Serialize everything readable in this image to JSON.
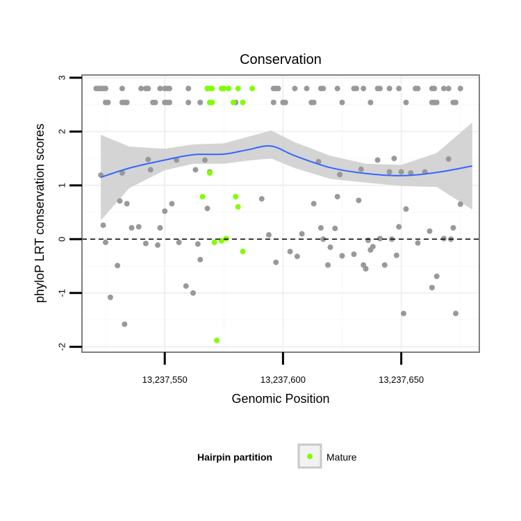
{
  "chart_data": {
    "type": "scatter",
    "title": "Conservation",
    "xlabel": "Genomic Position",
    "ylabel": "phyloP LRT conservation scores",
    "xlim": [
      13237515,
      13237683
    ],
    "ylim": [
      -2.1,
      3.05
    ],
    "x_ticks": [
      {
        "value": 13237550,
        "label": "13,237,550"
      },
      {
        "value": 13237600,
        "label": "13,237,600"
      },
      {
        "value": 13237650,
        "label": "13,237,650"
      }
    ],
    "y_ticks": [
      {
        "value": -2,
        "label": "-2"
      },
      {
        "value": -1,
        "label": "-1"
      },
      {
        "value": 0,
        "label": "0"
      },
      {
        "value": 1,
        "label": "1"
      },
      {
        "value": 2,
        "label": "2"
      },
      {
        "value": 3,
        "label": "3"
      }
    ],
    "reference_line": {
      "y": 0,
      "style": "dashed"
    },
    "colors": {
      "other": "#999999",
      "mature": "#7fff00",
      "smooth_line": "#3366ff",
      "smooth_band": "#cccccc",
      "panel_border": "#7f7f7f"
    },
    "legend": {
      "title": "Hairpin partition",
      "entries": [
        {
          "label": "Mature",
          "color": "#7fff00"
        }
      ],
      "position": "bottom"
    },
    "smooth": {
      "x": [
        13237523,
        13237535,
        13237550,
        13237562,
        13237575,
        13237585,
        13237595,
        13237605,
        13237620,
        13237635,
        13237650,
        13237665,
        13237680
      ],
      "y": [
        1.15,
        1.32,
        1.47,
        1.57,
        1.58,
        1.66,
        1.73,
        1.55,
        1.33,
        1.22,
        1.18,
        1.24,
        1.36
      ],
      "lower": [
        0.35,
        0.95,
        1.28,
        1.4,
        1.4,
        1.46,
        1.5,
        1.32,
        1.12,
        1.05,
        0.99,
        0.97,
        0.55
      ],
      "upper": [
        1.94,
        1.72,
        1.68,
        1.76,
        1.78,
        1.9,
        2.02,
        1.8,
        1.55,
        1.4,
        1.38,
        1.6,
        2.17
      ]
    },
    "series": [
      {
        "name": "Other",
        "points": [
          [
            13237523,
            1.19
          ],
          [
            13237524,
            0.26
          ],
          [
            13237525,
            -0.06
          ],
          [
            13237527,
            -1.08
          ],
          [
            13237530,
            -0.49
          ],
          [
            13237531,
            0.71
          ],
          [
            13237532,
            1.23
          ],
          [
            13237533,
            -1.58
          ],
          [
            13237534,
            0.66
          ],
          [
            13237536,
            0.21
          ],
          [
            13237539,
            0.23
          ],
          [
            13237542,
            -0.08
          ],
          [
            13237543,
            1.48
          ],
          [
            13237544,
            1.29
          ],
          [
            13237547,
            -0.11
          ],
          [
            13237548,
            0.21
          ],
          [
            13237550,
            0.52
          ],
          [
            13237553,
            0.66
          ],
          [
            13237555,
            1.47
          ],
          [
            13237556,
            -0.06
          ],
          [
            13237559,
            -0.87
          ],
          [
            13237562,
            -1.0
          ],
          [
            13237563,
            1.29
          ],
          [
            13237564,
            -0.09
          ],
          [
            13237565,
            -0.38
          ],
          [
            13237567,
            1.47
          ],
          [
            13237568,
            0.57
          ],
          [
            13237569,
            1.25
          ],
          [
            13237591,
            0.75
          ],
          [
            13237594,
            0.08
          ],
          [
            13237597,
            -0.43
          ],
          [
            13237603,
            -0.23
          ],
          [
            13237606,
            -0.32
          ],
          [
            13237608,
            0.1
          ],
          [
            13237613,
            0.66
          ],
          [
            13237615,
            1.44
          ],
          [
            13237616,
            0.21
          ],
          [
            13237617,
            0.0
          ],
          [
            13237619,
            -0.48
          ],
          [
            13237620,
            -0.15
          ],
          [
            13237622,
            0.2
          ],
          [
            13237623,
            0.79
          ],
          [
            13237624,
            1.2
          ],
          [
            13237625,
            -0.31
          ],
          [
            13237630,
            -0.28
          ],
          [
            13237632,
            0.72
          ],
          [
            13237633,
            1.3
          ],
          [
            13237634,
            -0.48
          ],
          [
            13237635,
            -0.55
          ],
          [
            13237636,
            -0.02
          ],
          [
            13237637,
            -0.2
          ],
          [
            13237638,
            -0.14
          ],
          [
            13237640,
            1.47
          ],
          [
            13237641,
            0.01
          ],
          [
            13237643,
            -0.48
          ],
          [
            13237645,
            1.25
          ],
          [
            13237646,
            0.0
          ],
          [
            13237647,
            1.5
          ],
          [
            13237648,
            -0.3
          ],
          [
            13237649,
            0.23
          ],
          [
            13237650,
            1.25
          ],
          [
            13237651,
            -1.38
          ],
          [
            13237652,
            0.56
          ],
          [
            13237654,
            1.23
          ],
          [
            13237657,
            -0.07
          ],
          [
            13237660,
            1.25
          ],
          [
            13237662,
            0.15
          ],
          [
            13237663,
            -0.9
          ],
          [
            13237665,
            -0.69
          ],
          [
            13237668,
            0.01
          ],
          [
            13237670,
            1.49
          ],
          [
            13237671,
            0.0
          ],
          [
            13237672,
            0.21
          ],
          [
            13237673,
            -1.38
          ],
          [
            13237675,
            0.65
          ],
          [
            13237521,
            2.8
          ],
          [
            13237522,
            2.8
          ],
          [
            13237523,
            2.8
          ],
          [
            13237524,
            2.8
          ],
          [
            13237525,
            2.8
          ],
          [
            13237532,
            2.8
          ],
          [
            13237540,
            2.8
          ],
          [
            13237542,
            2.8
          ],
          [
            13237543,
            2.8
          ],
          [
            13237548,
            2.8
          ],
          [
            13237550,
            2.8
          ],
          [
            13237551,
            2.8
          ],
          [
            13237552,
            2.8
          ],
          [
            13237560,
            2.8
          ],
          [
            13237568,
            2.8
          ],
          [
            13237575,
            2.8
          ],
          [
            13237596,
            2.8
          ],
          [
            13237597,
            2.8
          ],
          [
            13237598,
            2.8
          ],
          [
            13237605,
            2.8
          ],
          [
            13237610,
            2.8
          ],
          [
            13237616,
            2.8
          ],
          [
            13237617,
            2.8
          ],
          [
            13237623,
            2.8
          ],
          [
            13237630,
            2.8
          ],
          [
            13237631,
            2.8
          ],
          [
            13237634,
            2.8
          ],
          [
            13237640,
            2.8
          ],
          [
            13237641,
            2.8
          ],
          [
            13237645,
            2.8
          ],
          [
            13237649,
            2.8
          ],
          [
            13237656,
            2.8
          ],
          [
            13237657,
            2.8
          ],
          [
            13237663,
            2.8
          ],
          [
            13237664,
            2.8
          ],
          [
            13237668,
            2.8
          ],
          [
            13237670,
            2.8
          ],
          [
            13237675,
            2.8
          ],
          [
            13237525,
            2.54
          ],
          [
            13237526,
            2.54
          ],
          [
            13237532,
            2.54
          ],
          [
            13237533,
            2.54
          ],
          [
            13237534,
            2.54
          ],
          [
            13237545,
            2.54
          ],
          [
            13237546,
            2.54
          ],
          [
            13237550,
            2.54
          ],
          [
            13237551,
            2.54
          ],
          [
            13237552,
            2.54
          ],
          [
            13237560,
            2.54
          ],
          [
            13237565,
            2.54
          ],
          [
            13237580,
            2.54
          ],
          [
            13237596,
            2.54
          ],
          [
            13237600,
            2.54
          ],
          [
            13237601,
            2.54
          ],
          [
            13237612,
            2.54
          ],
          [
            13237613,
            2.54
          ],
          [
            13237625,
            2.54
          ],
          [
            13237637,
            2.54
          ],
          [
            13237652,
            2.54
          ],
          [
            13237663,
            2.54
          ],
          [
            13237664,
            2.54
          ],
          [
            13237665,
            2.54
          ],
          [
            13237672,
            2.54
          ],
          [
            13237673,
            2.54
          ]
        ]
      },
      {
        "name": "Mature",
        "points": [
          [
            13237569,
            1.23
          ],
          [
            13237566,
            0.79
          ],
          [
            13237580,
            0.79
          ],
          [
            13237581,
            0.6
          ],
          [
            13237576,
            0.01
          ],
          [
            13237574,
            -0.03
          ],
          [
            13237571,
            -0.06
          ],
          [
            13237583,
            -0.23
          ],
          [
            13237572,
            -1.88
          ],
          [
            13237568,
            2.8
          ],
          [
            13237569,
            2.8
          ],
          [
            13237570,
            2.8
          ],
          [
            13237574,
            2.8
          ],
          [
            13237575,
            2.8
          ],
          [
            13237577,
            2.8
          ],
          [
            13237581,
            2.8
          ],
          [
            13237587,
            2.8
          ],
          [
            13237569,
            2.54
          ],
          [
            13237570,
            2.54
          ],
          [
            13237579,
            2.54
          ],
          [
            13237583,
            2.54
          ]
        ]
      }
    ]
  }
}
